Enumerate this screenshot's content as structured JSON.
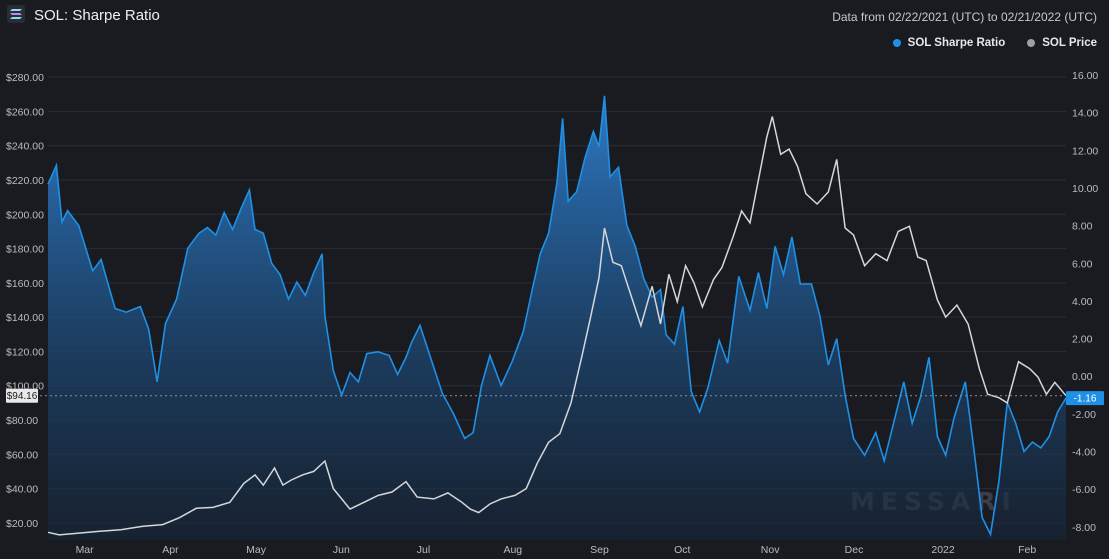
{
  "header": {
    "title": "SOL: Sharpe Ratio",
    "date_range": "Data from 02/22/2021 (UTC) to 02/21/2022 (UTC)",
    "logo_icon": "solana-logo-icon"
  },
  "legend": {
    "items": [
      {
        "label": "SOL Sharpe Ratio",
        "color": "#1e90e6"
      },
      {
        "label": "SOL Price",
        "color": "#9aa0a8"
      }
    ]
  },
  "watermark": "MESSARI",
  "colors": {
    "background": "#191b20",
    "grid": "#2b2e35",
    "sharpe_line": "#1e90e6",
    "price_line": "#d5d7db"
  },
  "chart_data": {
    "type": "line",
    "x_labels": [
      "Mar",
      "Apr",
      "May",
      "Jun",
      "Jul",
      "Aug",
      "Sep",
      "Oct",
      "Nov",
      "Dec",
      "2022",
      "Feb"
    ],
    "left_axis": {
      "ticks": [
        "$20.00",
        "$40.00",
        "$60.00",
        "$80.00",
        "$100.00",
        "$120.00",
        "$140.00",
        "$160.00",
        "$180.00",
        "$200.00",
        "$220.00",
        "$240.00",
        "$260.00",
        "$280.00"
      ],
      "ylim": [
        10,
        290
      ]
    },
    "right_axis": {
      "ticks": [
        "-8.00",
        "-6.00",
        "-4.00",
        "-2.00",
        "0.00",
        "2.00",
        "4.00",
        "6.00",
        "8.00",
        "10.00",
        "12.00",
        "14.00",
        "16.00"
      ],
      "ylim": [
        -8.7,
        16.8
      ]
    },
    "current_price_label": "$94.16",
    "current_price_value": 94.16,
    "current_sharpe_label": "-1.16",
    "current_sharpe_value": -1.16,
    "series": [
      {
        "name": "SOL Sharpe Ratio",
        "axis": "right",
        "points": [
          [
            "2021-02-22",
            10.2
          ],
          [
            "2021-02-25",
            11.2
          ],
          [
            "2021-02-27",
            8.2
          ],
          [
            "2021-03-01",
            8.8
          ],
          [
            "2021-03-05",
            8.0
          ],
          [
            "2021-03-10",
            5.6
          ],
          [
            "2021-03-13",
            6.2
          ],
          [
            "2021-03-18",
            3.6
          ],
          [
            "2021-03-22",
            3.4
          ],
          [
            "2021-03-27",
            3.7
          ],
          [
            "2021-03-30",
            2.5
          ],
          [
            "2021-04-02",
            -0.3
          ],
          [
            "2021-04-05",
            2.8
          ],
          [
            "2021-04-09",
            4.1
          ],
          [
            "2021-04-13",
            6.8
          ],
          [
            "2021-04-17",
            7.6
          ],
          [
            "2021-04-20",
            7.9
          ],
          [
            "2021-04-23",
            7.5
          ],
          [
            "2021-04-26",
            8.7
          ],
          [
            "2021-04-29",
            7.8
          ],
          [
            "2021-05-02",
            8.9
          ],
          [
            "2021-05-05",
            9.9
          ],
          [
            "2021-05-07",
            7.8
          ],
          [
            "2021-05-10",
            7.6
          ],
          [
            "2021-05-13",
            6.0
          ],
          [
            "2021-05-16",
            5.4
          ],
          [
            "2021-05-19",
            4.1
          ],
          [
            "2021-05-22",
            5.0
          ],
          [
            "2021-05-25",
            4.3
          ],
          [
            "2021-05-28",
            5.5
          ],
          [
            "2021-05-31",
            6.5
          ],
          [
            "2021-06-01",
            3.2
          ],
          [
            "2021-06-04",
            0.3
          ],
          [
            "2021-06-07",
            -1.0
          ],
          [
            "2021-06-10",
            0.2
          ],
          [
            "2021-06-13",
            -0.3
          ],
          [
            "2021-06-16",
            1.2
          ],
          [
            "2021-06-20",
            1.3
          ],
          [
            "2021-06-24",
            1.1
          ],
          [
            "2021-06-27",
            0.1
          ],
          [
            "2021-06-30",
            1.0
          ],
          [
            "2021-07-02",
            1.8
          ],
          [
            "2021-07-05",
            2.7
          ],
          [
            "2021-07-09",
            0.9
          ],
          [
            "2021-07-13",
            -0.9
          ],
          [
            "2021-07-17",
            -2.0
          ],
          [
            "2021-07-21",
            -3.3
          ],
          [
            "2021-07-24",
            -3.0
          ],
          [
            "2021-07-27",
            -0.5
          ],
          [
            "2021-07-30",
            1.1
          ],
          [
            "2021-08-03",
            -0.5
          ],
          [
            "2021-08-07",
            0.8
          ],
          [
            "2021-08-11",
            2.4
          ],
          [
            "2021-08-14",
            4.5
          ],
          [
            "2021-08-17",
            6.5
          ],
          [
            "2021-08-20",
            7.6
          ],
          [
            "2021-08-23",
            10.3
          ],
          [
            "2021-08-25",
            13.7
          ],
          [
            "2021-08-27",
            9.3
          ],
          [
            "2021-08-30",
            9.8
          ],
          [
            "2021-09-02",
            11.6
          ],
          [
            "2021-09-05",
            13.0
          ],
          [
            "2021-09-07",
            12.2
          ],
          [
            "2021-09-09",
            14.9
          ],
          [
            "2021-09-11",
            10.6
          ],
          [
            "2021-09-14",
            11.1
          ],
          [
            "2021-09-17",
            8.0
          ],
          [
            "2021-09-20",
            6.9
          ],
          [
            "2021-09-23",
            5.2
          ],
          [
            "2021-09-26",
            4.2
          ],
          [
            "2021-09-29",
            4.6
          ],
          [
            "2021-10-01",
            2.2
          ],
          [
            "2021-10-04",
            1.7
          ],
          [
            "2021-10-07",
            3.7
          ],
          [
            "2021-10-10",
            -0.8
          ],
          [
            "2021-10-13",
            -1.9
          ],
          [
            "2021-10-16",
            -0.6
          ],
          [
            "2021-10-20",
            1.9
          ],
          [
            "2021-10-23",
            0.7
          ],
          [
            "2021-10-27",
            5.3
          ],
          [
            "2021-10-31",
            3.5
          ],
          [
            "2021-11-03",
            5.5
          ],
          [
            "2021-11-06",
            3.6
          ],
          [
            "2021-11-09",
            6.9
          ],
          [
            "2021-11-12",
            5.4
          ],
          [
            "2021-11-15",
            7.4
          ],
          [
            "2021-11-18",
            4.9
          ],
          [
            "2021-11-22",
            4.9
          ],
          [
            "2021-11-25",
            3.2
          ],
          [
            "2021-11-28",
            0.6
          ],
          [
            "2021-12-01",
            2.0
          ],
          [
            "2021-12-04",
            -1.0
          ],
          [
            "2021-12-07",
            -3.3
          ],
          [
            "2021-12-11",
            -4.2
          ],
          [
            "2021-12-15",
            -3.0
          ],
          [
            "2021-12-18",
            -4.5
          ],
          [
            "2021-12-22",
            -2.1
          ],
          [
            "2021-12-25",
            -0.3
          ],
          [
            "2021-12-28",
            -2.5
          ],
          [
            "2021-12-31",
            -1.1
          ],
          [
            "2022-01-03",
            1.0
          ],
          [
            "2022-01-06",
            -3.2
          ],
          [
            "2022-01-09",
            -4.2
          ],
          [
            "2022-01-12",
            -2.2
          ],
          [
            "2022-01-16",
            -0.3
          ],
          [
            "2022-01-19",
            -3.8
          ],
          [
            "2022-01-22",
            -7.5
          ],
          [
            "2022-01-25",
            -8.4
          ],
          [
            "2022-01-28",
            -5.6
          ],
          [
            "2022-01-31",
            -1.4
          ],
          [
            "2022-02-03",
            -2.5
          ],
          [
            "2022-02-06",
            -4.0
          ],
          [
            "2022-02-09",
            -3.5
          ],
          [
            "2022-02-12",
            -3.8
          ],
          [
            "2022-02-15",
            -3.2
          ],
          [
            "2022-02-18",
            -1.9
          ],
          [
            "2022-02-21",
            -1.16
          ]
        ]
      },
      {
        "name": "SOL Price",
        "axis": "left",
        "points": [
          [
            "2021-02-22",
            14.5
          ],
          [
            "2021-02-26",
            13.0
          ],
          [
            "2021-03-05",
            14.0
          ],
          [
            "2021-03-12",
            15.0
          ],
          [
            "2021-03-20",
            16.0
          ],
          [
            "2021-03-28",
            18.0
          ],
          [
            "2021-04-04",
            19.0
          ],
          [
            "2021-04-10",
            23.0
          ],
          [
            "2021-04-16",
            28.5
          ],
          [
            "2021-04-22",
            29.0
          ],
          [
            "2021-04-28",
            32.0
          ],
          [
            "2021-05-03",
            43.0
          ],
          [
            "2021-05-07",
            48.0
          ],
          [
            "2021-05-10",
            42.0
          ],
          [
            "2021-05-14",
            52.0
          ],
          [
            "2021-05-17",
            42.0
          ],
          [
            "2021-05-20",
            45.0
          ],
          [
            "2021-05-24",
            48.0
          ],
          [
            "2021-05-28",
            50.0
          ],
          [
            "2021-06-01",
            56.0
          ],
          [
            "2021-06-04",
            40.0
          ],
          [
            "2021-06-07",
            34.0
          ],
          [
            "2021-06-10",
            28.0
          ],
          [
            "2021-06-15",
            32.0
          ],
          [
            "2021-06-20",
            36.0
          ],
          [
            "2021-06-25",
            38.0
          ],
          [
            "2021-06-30",
            44.0
          ],
          [
            "2021-07-04",
            35.0
          ],
          [
            "2021-07-10",
            34.0
          ],
          [
            "2021-07-15",
            37.5
          ],
          [
            "2021-07-20",
            32.0
          ],
          [
            "2021-07-23",
            28.0
          ],
          [
            "2021-07-26",
            26.0
          ],
          [
            "2021-07-30",
            31.0
          ],
          [
            "2021-08-03",
            34.0
          ],
          [
            "2021-08-08",
            36.0
          ],
          [
            "2021-08-12",
            40.0
          ],
          [
            "2021-08-16",
            55.0
          ],
          [
            "2021-08-20",
            67.0
          ],
          [
            "2021-08-24",
            72.0
          ],
          [
            "2021-08-28",
            90.0
          ],
          [
            "2021-09-01",
            118.0
          ],
          [
            "2021-09-04",
            140.0
          ],
          [
            "2021-09-07",
            163.0
          ],
          [
            "2021-09-09",
            192.0
          ],
          [
            "2021-09-12",
            172.0
          ],
          [
            "2021-09-15",
            170.0
          ],
          [
            "2021-09-19",
            150.0
          ],
          [
            "2021-09-22",
            135.0
          ],
          [
            "2021-09-26",
            158.0
          ],
          [
            "2021-09-29",
            136.0
          ],
          [
            "2021-10-02",
            165.0
          ],
          [
            "2021-10-05",
            149.0
          ],
          [
            "2021-10-08",
            170.0
          ],
          [
            "2021-10-11",
            160.0
          ],
          [
            "2021-10-14",
            146.0
          ],
          [
            "2021-10-18",
            162.0
          ],
          [
            "2021-10-21",
            169.0
          ],
          [
            "2021-10-25",
            187.0
          ],
          [
            "2021-10-28",
            202.0
          ],
          [
            "2021-10-31",
            195.0
          ],
          [
            "2021-11-03",
            220.0
          ],
          [
            "2021-11-06",
            245.0
          ],
          [
            "2021-11-08",
            257.0
          ],
          [
            "2021-11-11",
            235.0
          ],
          [
            "2021-11-14",
            238.0
          ],
          [
            "2021-11-17",
            228.0
          ],
          [
            "2021-11-20",
            212.0
          ],
          [
            "2021-11-24",
            206.0
          ],
          [
            "2021-11-28",
            213.0
          ],
          [
            "2021-12-01",
            232.0
          ],
          [
            "2021-12-04",
            192.0
          ],
          [
            "2021-12-07",
            188.0
          ],
          [
            "2021-12-11",
            170.0
          ],
          [
            "2021-12-15",
            177.0
          ],
          [
            "2021-12-19",
            173.0
          ],
          [
            "2021-12-23",
            190.0
          ],
          [
            "2021-12-27",
            193.0
          ],
          [
            "2021-12-30",
            175.0
          ],
          [
            "2022-01-02",
            173.0
          ],
          [
            "2022-01-06",
            150.0
          ],
          [
            "2022-01-09",
            140.0
          ],
          [
            "2022-01-13",
            147.0
          ],
          [
            "2022-01-17",
            136.0
          ],
          [
            "2022-01-21",
            110.0
          ],
          [
            "2022-01-24",
            95.0
          ],
          [
            "2022-01-28",
            93.0
          ],
          [
            "2022-01-31",
            90.0
          ],
          [
            "2022-02-04",
            114.0
          ],
          [
            "2022-02-08",
            110.0
          ],
          [
            "2022-02-11",
            105.0
          ],
          [
            "2022-02-14",
            95.0
          ],
          [
            "2022-02-17",
            102.0
          ],
          [
            "2022-02-21",
            94.16
          ]
        ]
      }
    ]
  }
}
